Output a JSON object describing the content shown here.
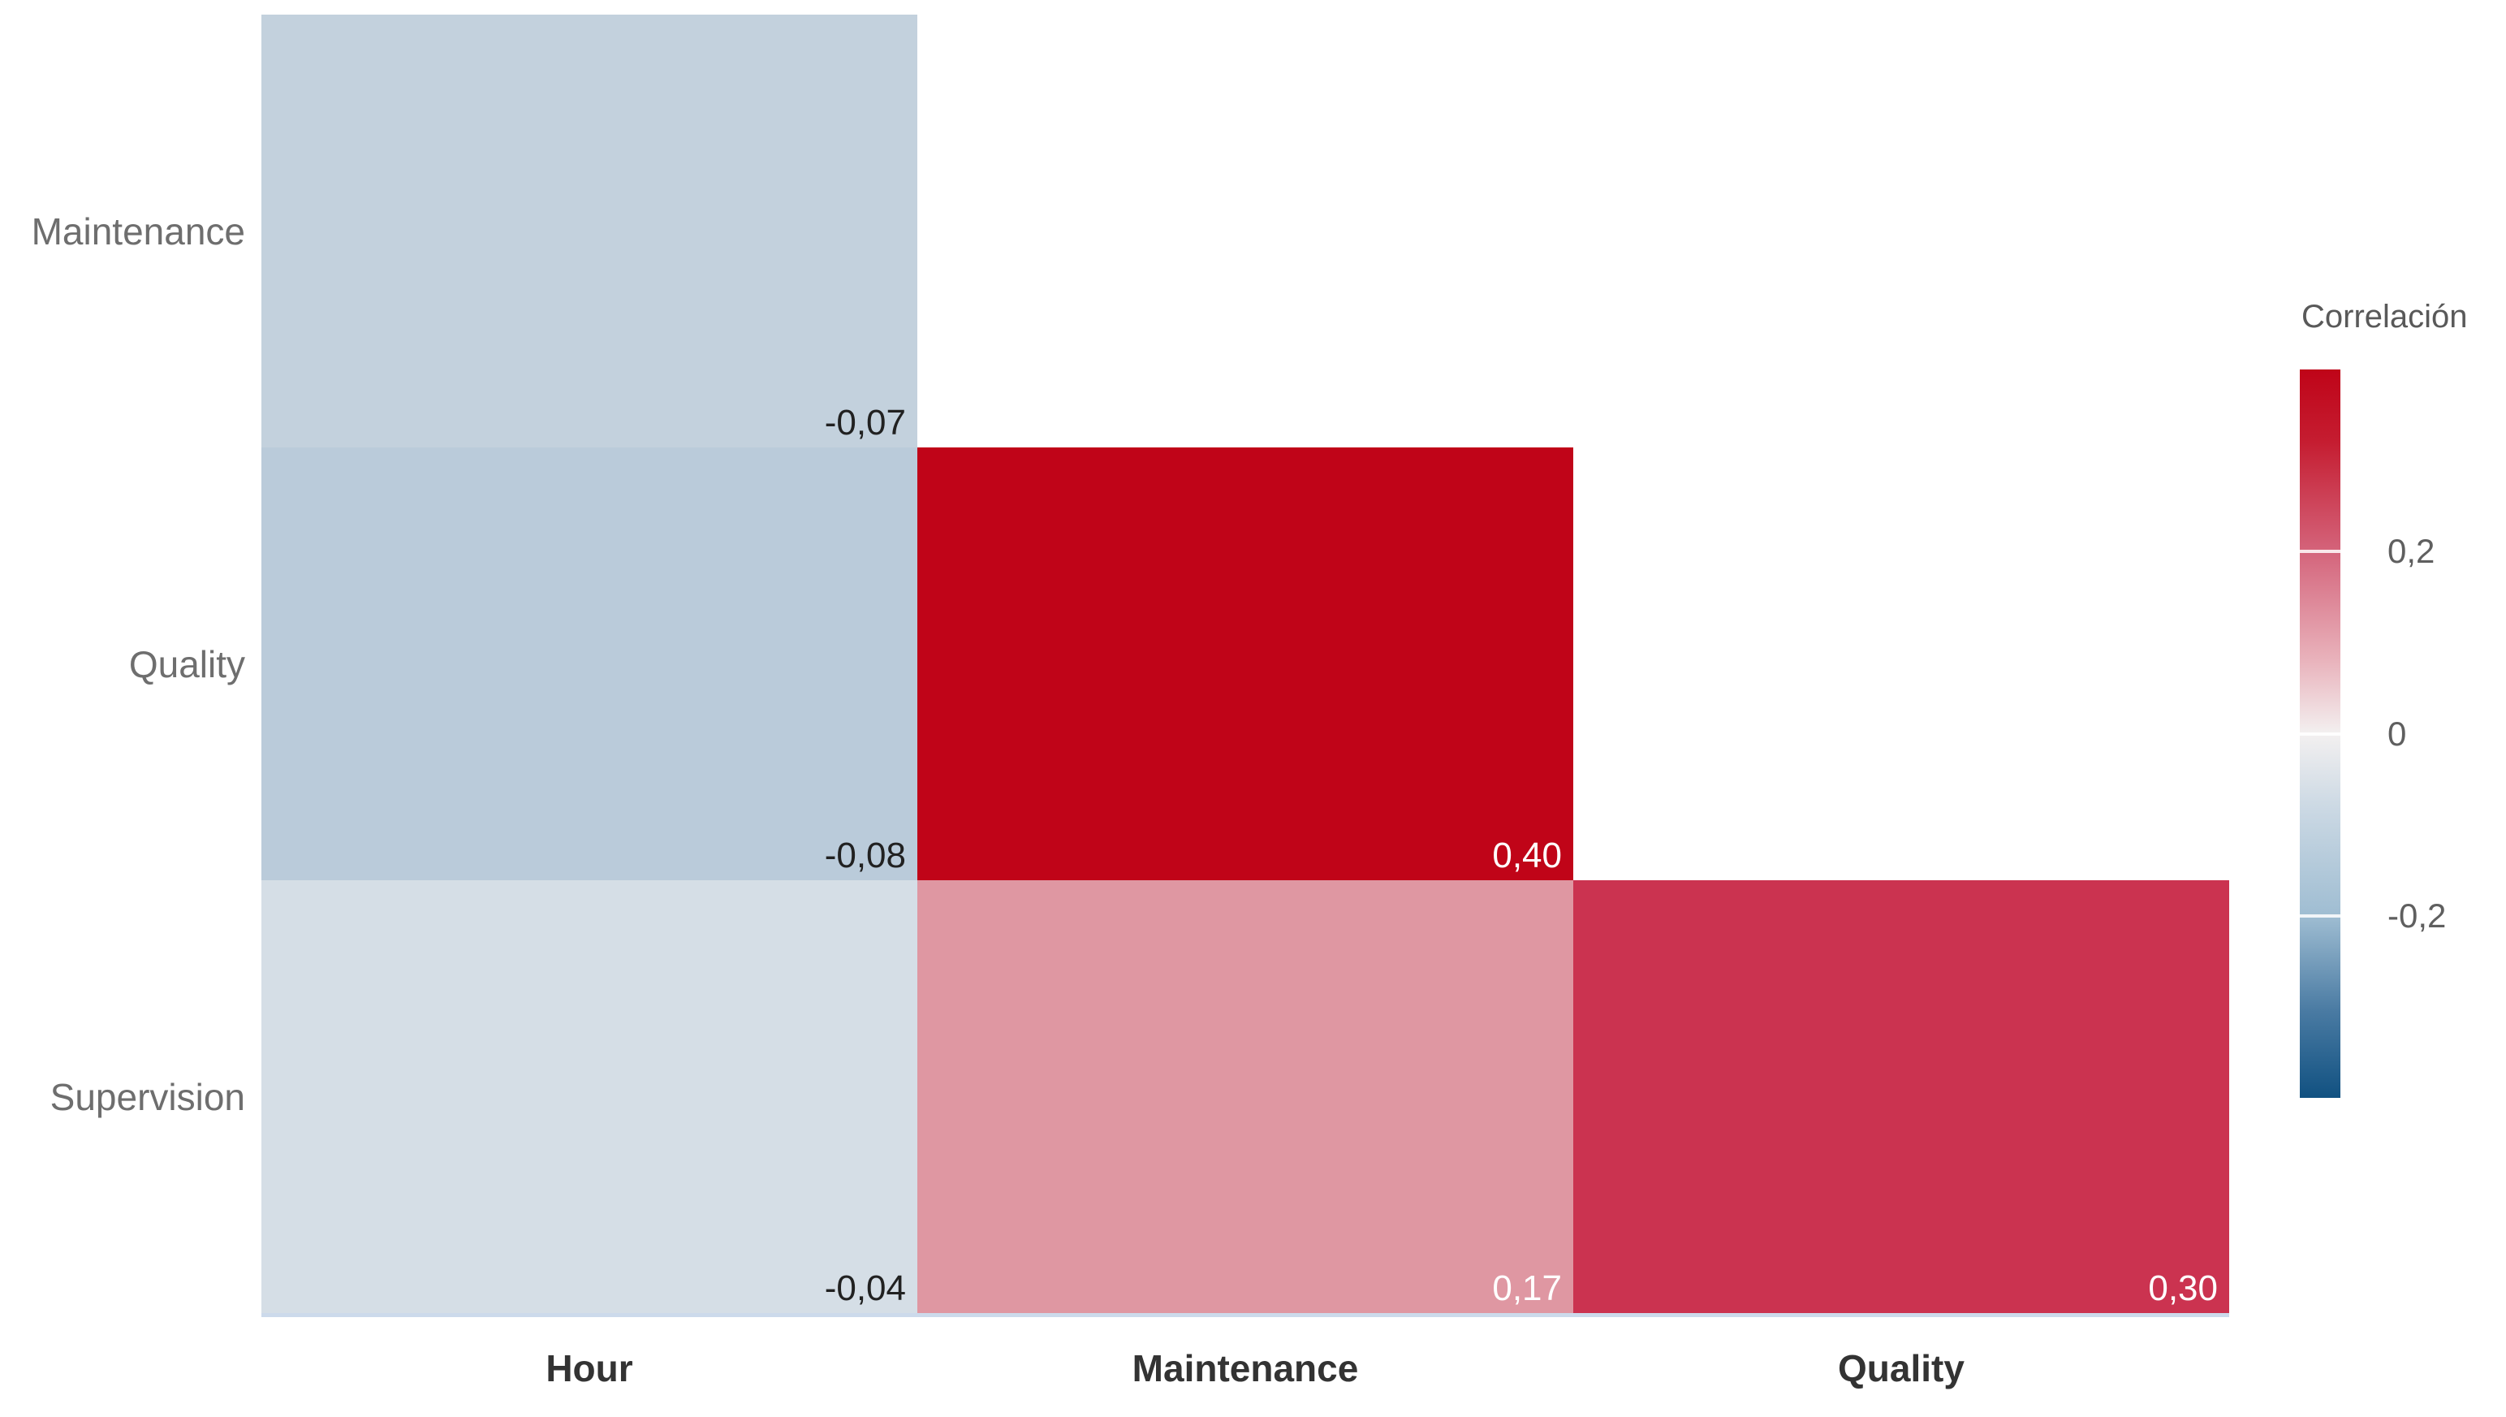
{
  "chart_data": {
    "type": "heatmap",
    "layout": "lower-triangular-correlation-matrix",
    "grid": false,
    "x_categories": [
      "Hour",
      "Maintenance",
      "Quality"
    ],
    "y_categories": [
      "Maintenance",
      "Quality",
      "Supervision"
    ],
    "value_format": "decimal-comma",
    "cells": [
      {
        "row": 0,
        "col": 0,
        "x": "Hour",
        "y": "Maintenance",
        "value": -0.07,
        "label": "-0,07",
        "color": "#c3d1dd",
        "label_color": "#212121"
      },
      {
        "row": 1,
        "col": 0,
        "x": "Hour",
        "y": "Quality",
        "value": -0.08,
        "label": "-0,08",
        "color": "#bacbda",
        "label_color": "#212121"
      },
      {
        "row": 1,
        "col": 1,
        "x": "Maintenance",
        "y": "Quality",
        "value": 0.4,
        "label": "0,40",
        "color": "#c00418",
        "label_color": "#ffffff"
      },
      {
        "row": 2,
        "col": 0,
        "x": "Hour",
        "y": "Supervision",
        "value": -0.04,
        "label": "-0,04",
        "color": "#d5dee6",
        "label_color": "#212121"
      },
      {
        "row": 2,
        "col": 1,
        "x": "Maintenance",
        "y": "Supervision",
        "value": 0.17,
        "label": "0,17",
        "color": "#df97a2",
        "label_color": "#ffffff"
      },
      {
        "row": 2,
        "col": 2,
        "x": "Quality",
        "y": "Supervision",
        "value": 0.3,
        "label": "0,30",
        "color": "#cb3350",
        "label_color": "#ffffff"
      }
    ],
    "legend": {
      "title": "Correlación",
      "position": "right",
      "domain": [
        -0.4,
        0.4
      ],
      "ticks": [
        {
          "label": "0,2",
          "value": 0.2,
          "position": 0.25
        },
        {
          "label": "0",
          "value": 0.0,
          "position": 0.5
        },
        {
          "label": "-0,2",
          "value": -0.2,
          "position": 0.75
        }
      ],
      "gradient": [
        {
          "color": "#bf0418",
          "stop": 0.0
        },
        {
          "color": "#c51d31",
          "stop": 0.1
        },
        {
          "color": "#d4647b",
          "stop": 0.25
        },
        {
          "color": "#e9b3bc",
          "stop": 0.4
        },
        {
          "color": "#f3f0f0",
          "stop": 0.5
        },
        {
          "color": "#ccd9e4",
          "stop": 0.6
        },
        {
          "color": "#9fbdd2",
          "stop": 0.75
        },
        {
          "color": "#4a7ba3",
          "stop": 0.88
        },
        {
          "color": "#115181",
          "stop": 1.0
        }
      ]
    },
    "colors": {
      "max_positive": "#c00418",
      "zero": "#f3f0f0",
      "max_negative": "#115181",
      "x_label": "#333333",
      "y_label": "#6e6e6e",
      "legend_text": "#595959"
    }
  }
}
